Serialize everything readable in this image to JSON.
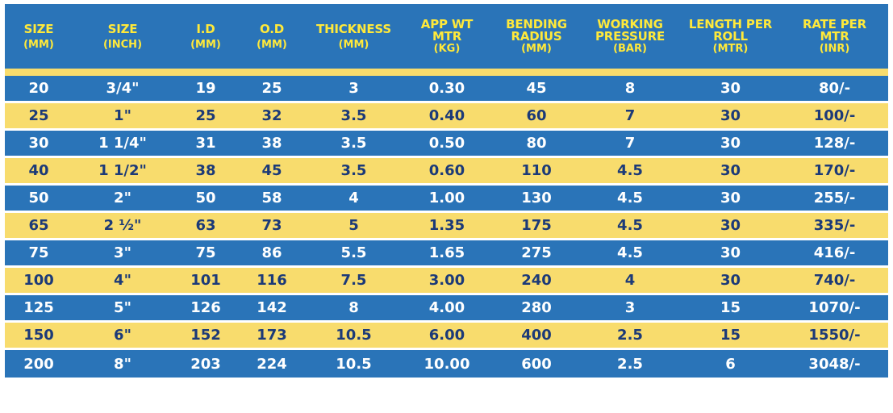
{
  "header": [
    {
      "main": "SIZE",
      "unit": "(MM)"
    },
    {
      "main": "SIZE",
      "unit": "(INCH)"
    },
    {
      "main": "I.D",
      "unit": "(MM)"
    },
    {
      "main": "O.D",
      "unit": "(MM)"
    },
    {
      "main": "THICKNESS",
      "unit": "(MM)"
    },
    {
      "main": "APP WT\nMTR",
      "unit": "(KG)"
    },
    {
      "main": "BENDING\nRADIUS",
      "unit": "(MM)"
    },
    {
      "main": "WORKING\nPRESSURE",
      "unit": "(BAR)"
    },
    {
      "main": "LENGTH PER\nROLL",
      "unit": "(MTR)"
    },
    {
      "main": "RATE PER\nMTR",
      "unit": "(INR)"
    }
  ],
  "rows": [
    [
      "20",
      "3/4\"",
      "19",
      "25",
      "3",
      "0.30",
      "45",
      "8",
      "30",
      "80/-"
    ],
    [
      "25",
      "1\"",
      "25",
      "32",
      "3.5",
      "0.40",
      "60",
      "7",
      "30",
      "100/-"
    ],
    [
      "30",
      "1 1/4\"",
      "31",
      "38",
      "3.5",
      "0.50",
      "80",
      "7",
      "30",
      "128/-"
    ],
    [
      "40",
      "1 1/2\"",
      "38",
      "45",
      "3.5",
      "0.60",
      "110",
      "4.5",
      "30",
      "170/-"
    ],
    [
      "50",
      "2\"",
      "50",
      "58",
      "4",
      "1.00",
      "130",
      "4.5",
      "30",
      "255/-"
    ],
    [
      "65",
      "2 ½\"",
      "63",
      "73",
      "5",
      "1.35",
      "175",
      "4.5",
      "30",
      "335/-"
    ],
    [
      "75",
      "3\"",
      "75",
      "86",
      "5.5",
      "1.65",
      "275",
      "4.5",
      "30",
      "416/-"
    ],
    [
      "100",
      "4\"",
      "101",
      "116",
      "7.5",
      "3.00",
      "240",
      "4",
      "30",
      "740/-"
    ],
    [
      "125",
      "5\"",
      "126",
      "142",
      "8",
      "4.00",
      "280",
      "3",
      "15",
      "1070/-"
    ],
    [
      "150",
      "6\"",
      "152",
      "173",
      "10.5",
      "6.00",
      "400",
      "2.5",
      "15",
      "1550/-"
    ],
    [
      "200",
      "8\"",
      "203",
      "224",
      "10.5",
      "10.00",
      "600",
      "2.5",
      "6",
      "3048/-"
    ]
  ],
  "colors": {
    "blue": "#2a74b8",
    "yellow": "#f8dc6d",
    "header_text": "#ffe93a",
    "yellow_row_text": "#1c3a78"
  }
}
